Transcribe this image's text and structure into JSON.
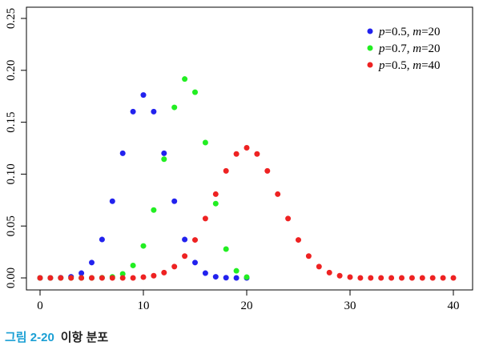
{
  "caption": {
    "label": "그림 2-20",
    "title": "이항 분포"
  },
  "chart_data": {
    "type": "scatter",
    "title": "",
    "xlabel": "",
    "ylabel": "",
    "xlim": [
      0,
      40
    ],
    "ylim": [
      0,
      0.25
    ],
    "x_ticks": [
      0,
      10,
      20,
      30,
      40
    ],
    "y_ticks": [
      "0.00",
      "0.05",
      "0.10",
      "0.15",
      "0.20",
      "0.25"
    ],
    "legend_position": "top-right",
    "grid": false,
    "series": [
      {
        "name": "p=0.5, m=20",
        "label_parts": [
          "p",
          "=0.5, ",
          "m",
          "=20"
        ],
        "color": "#2222ee",
        "x": [
          0,
          1,
          2,
          3,
          4,
          5,
          6,
          7,
          8,
          9,
          10,
          11,
          12,
          13,
          14,
          15,
          16,
          17,
          18,
          19,
          20
        ],
        "values": [
          0.0,
          0.0,
          0.0002,
          0.0011,
          0.0046,
          0.0148,
          0.037,
          0.0739,
          0.1201,
          0.1602,
          0.1762,
          0.1602,
          0.1201,
          0.0739,
          0.037,
          0.0148,
          0.0046,
          0.0011,
          0.0002,
          0.0,
          0.0
        ]
      },
      {
        "name": "p=0.7, m=20",
        "label_parts": [
          "p",
          "=0.7, ",
          "m",
          "=20"
        ],
        "color": "#22ee22",
        "x": [
          0,
          1,
          2,
          3,
          4,
          5,
          6,
          7,
          8,
          9,
          10,
          11,
          12,
          13,
          14,
          15,
          16,
          17,
          18,
          19,
          20
        ],
        "values": [
          0.0,
          0.0,
          0.0,
          0.0,
          0.0,
          0.0,
          0.0002,
          0.001,
          0.0039,
          0.012,
          0.0308,
          0.0654,
          0.1144,
          0.1643,
          0.1916,
          0.1789,
          0.1304,
          0.0716,
          0.0278,
          0.0068,
          0.0008
        ]
      },
      {
        "name": "p=0.5, m=40",
        "label_parts": [
          "p",
          "=0.5, ",
          "m",
          "=40"
        ],
        "color": "#ee2222",
        "x": [
          0,
          1,
          2,
          3,
          4,
          5,
          6,
          7,
          8,
          9,
          10,
          11,
          12,
          13,
          14,
          15,
          16,
          17,
          18,
          19,
          20,
          21,
          22,
          23,
          24,
          25,
          26,
          27,
          28,
          29,
          30,
          31,
          32,
          33,
          34,
          35,
          36,
          37,
          38,
          39,
          40
        ],
        "values": [
          0.0,
          0.0,
          0.0,
          0.0,
          0.0,
          0.0,
          0.0,
          0.0,
          0.0,
          0.0,
          0.0008,
          0.0021,
          0.0051,
          0.0109,
          0.021,
          0.0366,
          0.0572,
          0.0807,
          0.1031,
          0.1194,
          0.1254,
          0.1194,
          0.1031,
          0.0807,
          0.0572,
          0.0366,
          0.021,
          0.0109,
          0.0051,
          0.0021,
          0.0008,
          0.0,
          0.0,
          0.0,
          0.0,
          0.0,
          0.0,
          0.0,
          0.0,
          0.0,
          0.0
        ]
      }
    ]
  }
}
